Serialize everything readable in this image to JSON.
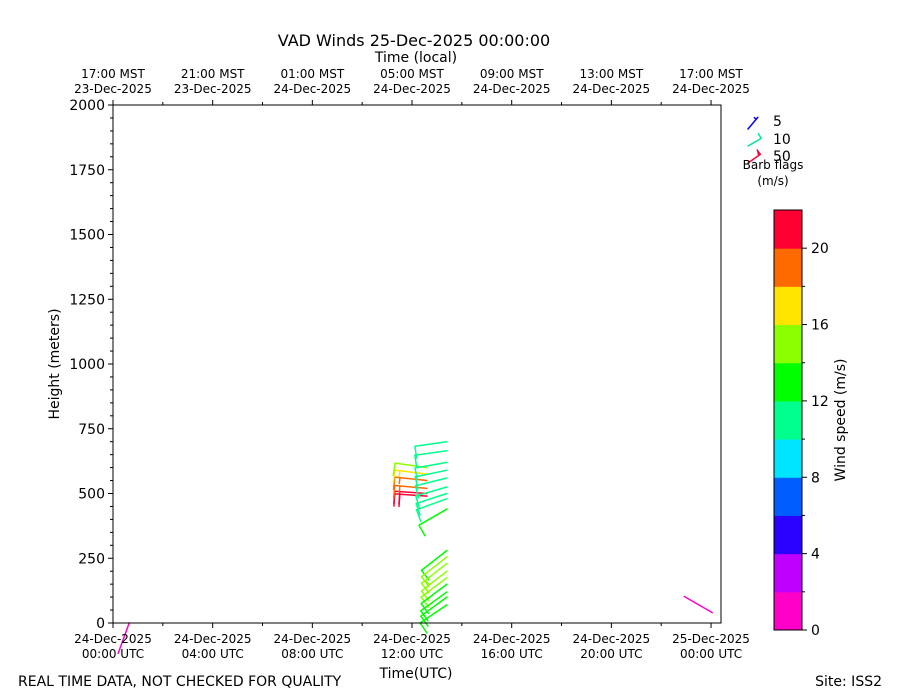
{
  "chart_data": {
    "type": "wind-barb-time-height",
    "title": "VAD Winds 25-Dec-2025 00:00:00",
    "top_axis_label": "Time (local)",
    "xlabel": "Time(UTC)",
    "ylabel": "Height (meters)",
    "x_range_hours_utc": [
      0,
      24.4
    ],
    "ylim": [
      0,
      2000
    ],
    "y_ticks": [
      0,
      250,
      500,
      750,
      1000,
      1250,
      1500,
      1750,
      2000
    ],
    "bottom_ticks": [
      {
        "hour": 0,
        "l1": "24-Dec-2025",
        "l2": "00:00 UTC"
      },
      {
        "hour": 4,
        "l1": "24-Dec-2025",
        "l2": "04:00 UTC"
      },
      {
        "hour": 8,
        "l1": "24-Dec-2025",
        "l2": "08:00 UTC"
      },
      {
        "hour": 12,
        "l1": "24-Dec-2025",
        "l2": "12:00 UTC"
      },
      {
        "hour": 16,
        "l1": "24-Dec-2025",
        "l2": "16:00 UTC"
      },
      {
        "hour": 20,
        "l1": "24-Dec-2025",
        "l2": "20:00 UTC"
      },
      {
        "hour": 24,
        "l1": "25-Dec-2025",
        "l2": "00:00 UTC"
      }
    ],
    "top_ticks": [
      {
        "hour": 0,
        "l1": "17:00 MST",
        "l2": "23-Dec-2025"
      },
      {
        "hour": 4,
        "l1": "21:00 MST",
        "l2": "23-Dec-2025"
      },
      {
        "hour": 8,
        "l1": "01:00 MST",
        "l2": "24-Dec-2025"
      },
      {
        "hour": 12,
        "l1": "05:00 MST",
        "l2": "24-Dec-2025"
      },
      {
        "hour": 16,
        "l1": "09:00 MST",
        "l2": "24-Dec-2025"
      },
      {
        "hour": 20,
        "l1": "13:00 MST",
        "l2": "24-Dec-2025"
      },
      {
        "hour": 24,
        "l1": "17:00 MST",
        "l2": "24-Dec-2025"
      }
    ],
    "colorbar": {
      "label": "Wind speed (m/s)",
      "range": [
        0,
        22
      ],
      "ticks": [
        0,
        4,
        8,
        12,
        16,
        20
      ],
      "colors": [
        "#ff00c8",
        "#bf00ff",
        "#2a00ff",
        "#005dff",
        "#00e5ff",
        "#00ff8c",
        "#00ff00",
        "#8cff00",
        "#ffe500",
        "#ff6a00",
        "#ff0033"
      ]
    },
    "legend": {
      "entries": [
        "5",
        "10",
        "50"
      ],
      "caption1": "Barb flags",
      "caption2": "(m/s)"
    },
    "barbs": [
      {
        "hour": 0.65,
        "height": 0,
        "speed": 1,
        "dir": 200
      },
      {
        "hour": 12.6,
        "height": 490,
        "speed": 21,
        "dir": 274
      },
      {
        "hour": 12.6,
        "height": 500,
        "speed": 20,
        "dir": 274
      },
      {
        "hour": 12.6,
        "height": 520,
        "speed": 19,
        "dir": 275
      },
      {
        "hour": 12.6,
        "height": 550,
        "speed": 18,
        "dir": 276
      },
      {
        "hour": 12.6,
        "height": 575,
        "speed": 16,
        "dir": 277
      },
      {
        "hour": 12.6,
        "height": 600,
        "speed": 14,
        "dir": 278
      },
      {
        "hour": 13.4,
        "height": 700,
        "speed": 11,
        "dir": 262
      },
      {
        "hour": 13.4,
        "height": 665,
        "speed": 11,
        "dir": 262
      },
      {
        "hour": 13.4,
        "height": 620,
        "speed": 11,
        "dir": 260
      },
      {
        "hour": 13.4,
        "height": 590,
        "speed": 11,
        "dir": 258
      },
      {
        "hour": 13.4,
        "height": 560,
        "speed": 11,
        "dir": 256
      },
      {
        "hour": 13.4,
        "height": 525,
        "speed": 11,
        "dir": 254
      },
      {
        "hour": 13.4,
        "height": 500,
        "speed": 10,
        "dir": 252
      },
      {
        "hour": 13.4,
        "height": 480,
        "speed": 10,
        "dir": 250
      },
      {
        "hour": 13.4,
        "height": 440,
        "speed": 13,
        "dir": 240
      },
      {
        "hour": 13.4,
        "height": 280,
        "speed": 13,
        "dir": 232
      },
      {
        "hour": 13.4,
        "height": 255,
        "speed": 14,
        "dir": 232
      },
      {
        "hour": 13.4,
        "height": 230,
        "speed": 15,
        "dir": 232
      },
      {
        "hour": 13.4,
        "height": 200,
        "speed": 14,
        "dir": 232
      },
      {
        "hour": 13.4,
        "height": 175,
        "speed": 14,
        "dir": 233
      },
      {
        "hour": 13.4,
        "height": 150,
        "speed": 13,
        "dir": 233
      },
      {
        "hour": 13.4,
        "height": 120,
        "speed": 13,
        "dir": 234
      },
      {
        "hour": 13.4,
        "height": 100,
        "speed": 12,
        "dir": 234
      },
      {
        "hour": 13.4,
        "height": 70,
        "speed": 12,
        "dir": 236
      },
      {
        "hour": 24.05,
        "height": 40,
        "speed": 1,
        "dir": 300
      }
    ]
  },
  "footer": {
    "left": "REAL TIME DATA, NOT CHECKED FOR QUALITY",
    "right": "Site: ISS2"
  }
}
